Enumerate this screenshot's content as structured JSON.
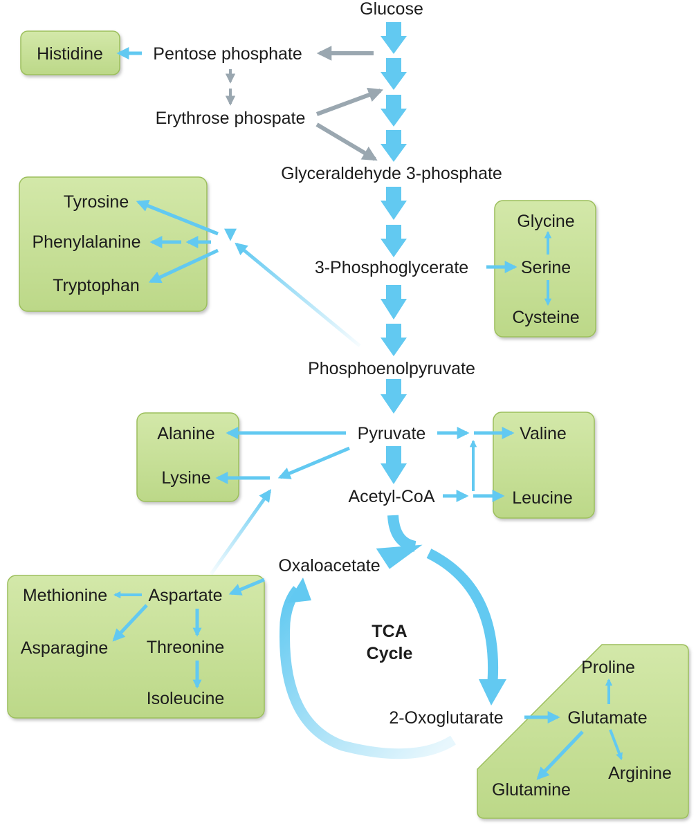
{
  "metabolites": {
    "glucose": "Glucose",
    "pentose_phosphate": "Pentose phosphate",
    "erythrose_phosphate": "Erythrose phospate",
    "g3p": "Glyceraldehyde 3-phosphate",
    "phosphoglycerate": "3-Phosphoglycerate",
    "pep": "Phosphoenolpyruvate",
    "pyruvate": "Pyruvate",
    "acetyl_coa": "Acetyl-CoA",
    "oxaloacetate": "Oxaloacetate",
    "oxoglutarate": "2-Oxoglutarate"
  },
  "tca": {
    "line1": "TCA",
    "line2": "Cycle"
  },
  "amino_acids": {
    "histidine": "Histidine",
    "tyrosine": "Tyrosine",
    "phenylalanine": "Phenylalanine",
    "tryptophan": "Tryptophan",
    "glycine": "Glycine",
    "serine": "Serine",
    "cysteine": "Cysteine",
    "alanine": "Alanine",
    "lysine": "Lysine",
    "valine": "Valine",
    "leucine": "Leucine",
    "methionine": "Methionine",
    "aspartate": "Aspartate",
    "asparagine": "Asparagine",
    "threonine": "Threonine",
    "isoleucine": "Isoleucine",
    "proline": "Proline",
    "glutamate": "Glutamate",
    "glutamine": "Glutamine",
    "arginine": "Arginine"
  },
  "colors": {
    "arrow_blue": "#62c9f1",
    "arrow_gray": "#9aa7b0",
    "box_fill": "#c8e09a",
    "box_stroke": "#9cbf5c",
    "text": "#1c1c1c"
  }
}
